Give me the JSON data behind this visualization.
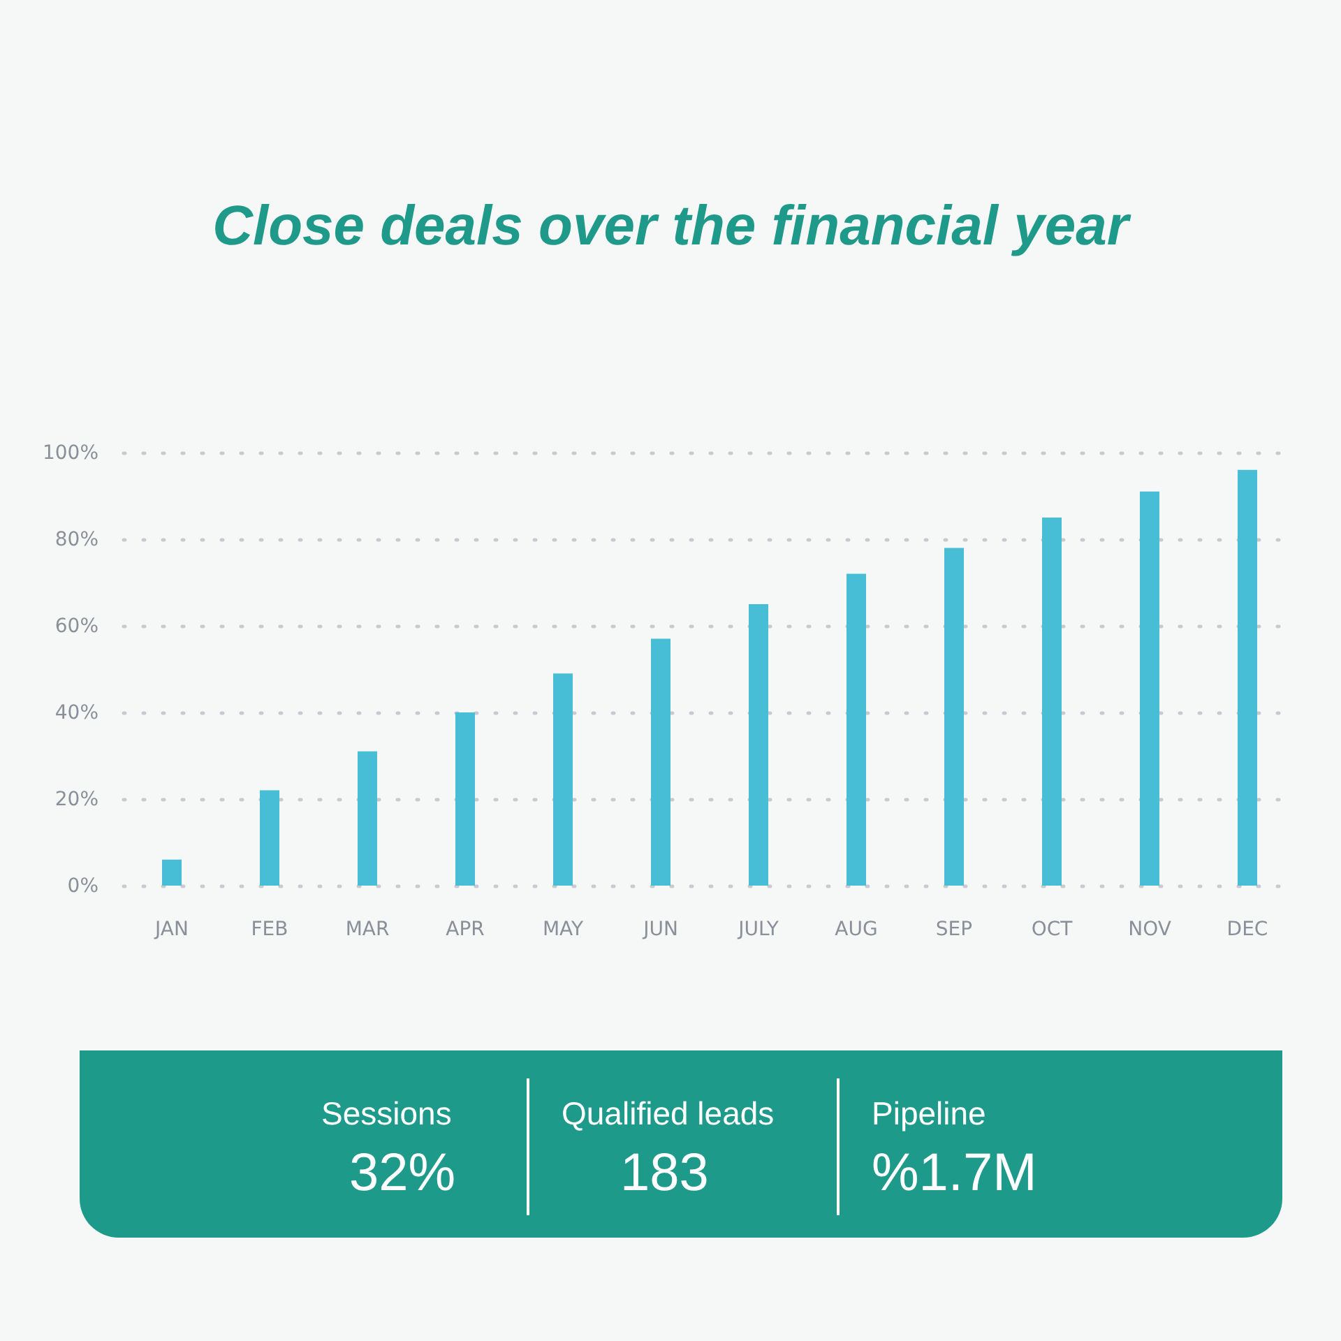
{
  "chart_data": [
    {
      "type": "bar",
      "title": "Close deals over the financial year",
      "categories": [
        "JAN",
        "FEB",
        "MAR",
        "APR",
        "MAY",
        "JUN",
        "JULY",
        "AUG",
        "SEP",
        "OCT",
        "NOV",
        "DEC"
      ],
      "values": [
        6,
        22,
        31,
        40,
        49,
        57,
        65,
        72,
        78,
        85,
        91,
        96
      ],
      "color": "#48bdd6",
      "ylim": [
        0,
        100
      ],
      "yticks": [
        {
          "value": 0,
          "label": "0%"
        },
        {
          "value": 20,
          "label": "20%"
        },
        {
          "value": 40,
          "label": "40%"
        },
        {
          "value": 60,
          "label": "60%"
        },
        {
          "value": 80,
          "label": "80%"
        },
        {
          "value": 100,
          "label": "100%"
        }
      ],
      "grid": "y"
    },
    {
      "type": "other",
      "annotations": [
        "Sessions",
        "32%",
        "Qualified leads",
        "183",
        "Pipeline",
        "%1.7M"
      ]
    }
  ]
}
